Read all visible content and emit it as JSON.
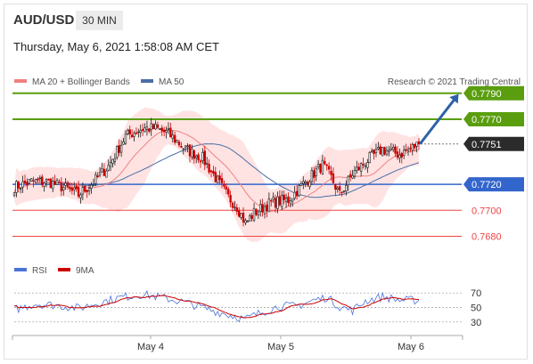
{
  "header": {
    "pair": "AUD/USD",
    "timeframe": "30 MIN",
    "datetime": "Thursday, May 6, 2021 1:58:08 AM CET"
  },
  "legend": {
    "ma20_label": "MA 20 + Bollinger Bands",
    "ma50_label": "MA 50",
    "credit": "Research © 2021 Trading Central",
    "rsi_label": "RSI",
    "ma9_label": "9MA"
  },
  "colors": {
    "bull": "#1a1a1a",
    "bear": "#cc0000",
    "green_level": "#5a9e0f",
    "blue_level": "#3366cc",
    "red_level": "#ee4444",
    "band_fill": "#ffd9d9",
    "ma20": "#f08080",
    "ma50": "#4a6fa5",
    "rsi": "#4a72d9",
    "ma9": "#cc0000",
    "arrow": "#2d62a8",
    "current": "#2b2b2b"
  },
  "chart_data": [
    {
      "type": "candlestick",
      "title": "AUD/USD",
      "timeframe": "30 MIN",
      "x_tick_labels": [
        "May 4",
        "May 5",
        "May 6"
      ],
      "ylim": [
        0.7666,
        0.7796
      ],
      "levels": [
        {
          "value": 0.779,
          "label": "0.7790",
          "kind": "resistance"
        },
        {
          "value": 0.777,
          "label": "0.7770",
          "kind": "resistance"
        },
        {
          "value": 0.7751,
          "label": "0.7751",
          "kind": "current"
        },
        {
          "value": 0.772,
          "label": "0.7720",
          "kind": "pivot"
        },
        {
          "value": 0.77,
          "label": "0.7700",
          "kind": "support"
        },
        {
          "value": 0.768,
          "label": "0.7680",
          "kind": "support"
        }
      ],
      "series": [
        {
          "name": "MA 20 + Bollinger Bands"
        },
        {
          "name": "MA 50"
        }
      ],
      "anchor_path": [
        [
          0,
          0.7718
        ],
        [
          8,
          0.7722
        ],
        [
          16,
          0.7722
        ],
        [
          24,
          0.7717
        ],
        [
          30,
          0.7712
        ],
        [
          36,
          0.772
        ],
        [
          44,
          0.7734
        ],
        [
          52,
          0.7757
        ],
        [
          60,
          0.7763
        ],
        [
          66,
          0.7763
        ],
        [
          72,
          0.7759
        ],
        [
          80,
          0.7747
        ],
        [
          88,
          0.774
        ],
        [
          96,
          0.772
        ],
        [
          100,
          0.771
        ],
        [
          104,
          0.7703
        ],
        [
          108,
          0.769
        ],
        [
          112,
          0.7698
        ],
        [
          120,
          0.7706
        ],
        [
          128,
          0.7708
        ],
        [
          136,
          0.7722
        ],
        [
          144,
          0.7735
        ],
        [
          148,
          0.7725
        ],
        [
          152,
          0.7712
        ],
        [
          158,
          0.7728
        ],
        [
          166,
          0.774
        ],
        [
          172,
          0.7747
        ],
        [
          180,
          0.7743
        ],
        [
          189,
          0.7751
        ]
      ],
      "candle_count": 190,
      "projection": {
        "from": 0.7751,
        "to": 0.779
      }
    },
    {
      "type": "line",
      "title": "",
      "y_ticks": [
        70,
        50,
        30
      ],
      "ylim": [
        20,
        80
      ],
      "series": [
        {
          "name": "RSI"
        },
        {
          "name": "9MA"
        }
      ],
      "anchor_path": [
        [
          0,
          47
        ],
        [
          10,
          55
        ],
        [
          20,
          53
        ],
        [
          30,
          49
        ],
        [
          40,
          57
        ],
        [
          50,
          64
        ],
        [
          60,
          68
        ],
        [
          70,
          63
        ],
        [
          80,
          57
        ],
        [
          90,
          48
        ],
        [
          100,
          40
        ],
        [
          108,
          34
        ],
        [
          116,
          44
        ],
        [
          124,
          52
        ],
        [
          132,
          52
        ],
        [
          140,
          60
        ],
        [
          146,
          64
        ],
        [
          152,
          51
        ],
        [
          158,
          46
        ],
        [
          164,
          59
        ],
        [
          172,
          65
        ],
        [
          180,
          60
        ],
        [
          189,
          60
        ]
      ]
    }
  ]
}
